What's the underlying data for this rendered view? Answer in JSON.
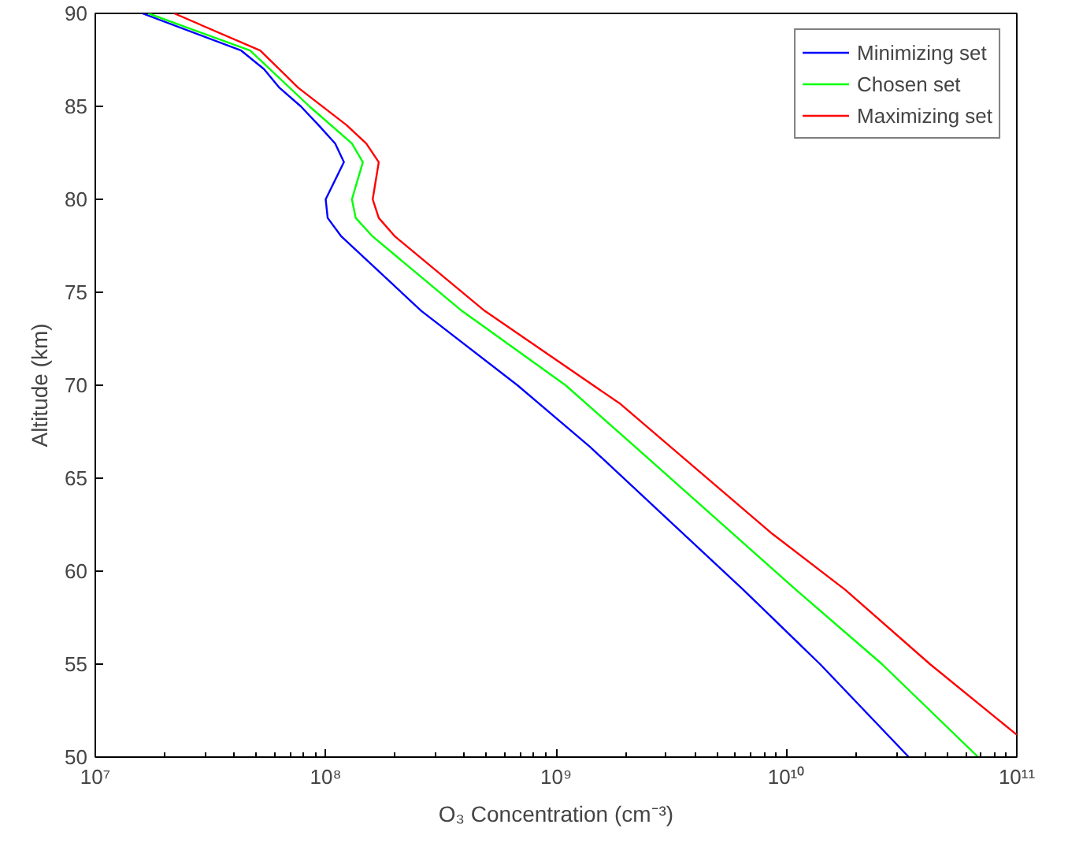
{
  "chart_data": {
    "type": "line",
    "xlabel": "O₃ Concentration (cm⁻³)",
    "ylabel": "Altitude (km)",
    "log": "x",
    "grid": false,
    "legend": "top right",
    "marker": "none",
    "line_style": "solid",
    "xlim": [
      10000000.0,
      100000000000.0
    ],
    "ylim": [
      50,
      90
    ],
    "xticks": [
      {
        "value": 10000000.0,
        "label": "10⁷"
      },
      {
        "value": 100000000.0,
        "label": "10⁸"
      },
      {
        "value": 1000000000.0,
        "label": "10⁹"
      },
      {
        "value": 10000000000.0,
        "label": "10¹⁰"
      },
      {
        "value": 100000000000.0,
        "label": "10¹¹"
      }
    ],
    "yticks": [
      50,
      55,
      60,
      65,
      70,
      75,
      80,
      85,
      90
    ],
    "series": [
      {
        "name": "Minimizing set",
        "color": "#0000ff",
        "x": [
          16000000.0,
          43000000.0,
          54000000.0,
          63000000.0,
          78000000.0,
          93000000.0,
          110000000.0,
          120000000.0,
          100000000.0,
          102000000.0,
          117000000.0,
          260000000.0,
          680000000.0,
          1400000000.0,
          6500000000.0,
          14000000000.0,
          34000000000.0
        ],
        "values": [
          90,
          88,
          87,
          86,
          85,
          84,
          83,
          82,
          80,
          79,
          78,
          74,
          70,
          66.7,
          59,
          55,
          50
        ]
      },
      {
        "name": "Chosen set",
        "color": "#00ff00",
        "x": [
          17000000.0,
          47000000.0,
          85000000.0,
          130000000.0,
          145000000.0,
          130000000.0,
          135000000.0,
          160000000.0,
          390000000.0,
          1100000000.0,
          2200000000.0,
          11000000000.0,
          26000000000.0,
          68000000000.0
        ],
        "values": [
          90,
          88,
          85,
          83,
          82,
          80,
          79,
          78,
          74,
          70,
          66.7,
          59,
          55,
          50
        ]
      },
      {
        "name": "Maximizing set",
        "color": "#ff0000",
        "x": [
          22000000.0,
          52000000.0,
          76000000.0,
          123000000.0,
          150000000.0,
          170000000.0,
          160000000.0,
          170000000.0,
          200000000.0,
          490000000.0,
          1900000000.0,
          8700000000.0,
          18000000000.0,
          42000000000.0,
          100000000000.0
        ],
        "values": [
          90,
          88,
          86,
          84,
          83,
          82,
          80,
          79,
          78,
          74,
          69,
          62,
          59,
          55,
          51.2
        ]
      }
    ]
  }
}
